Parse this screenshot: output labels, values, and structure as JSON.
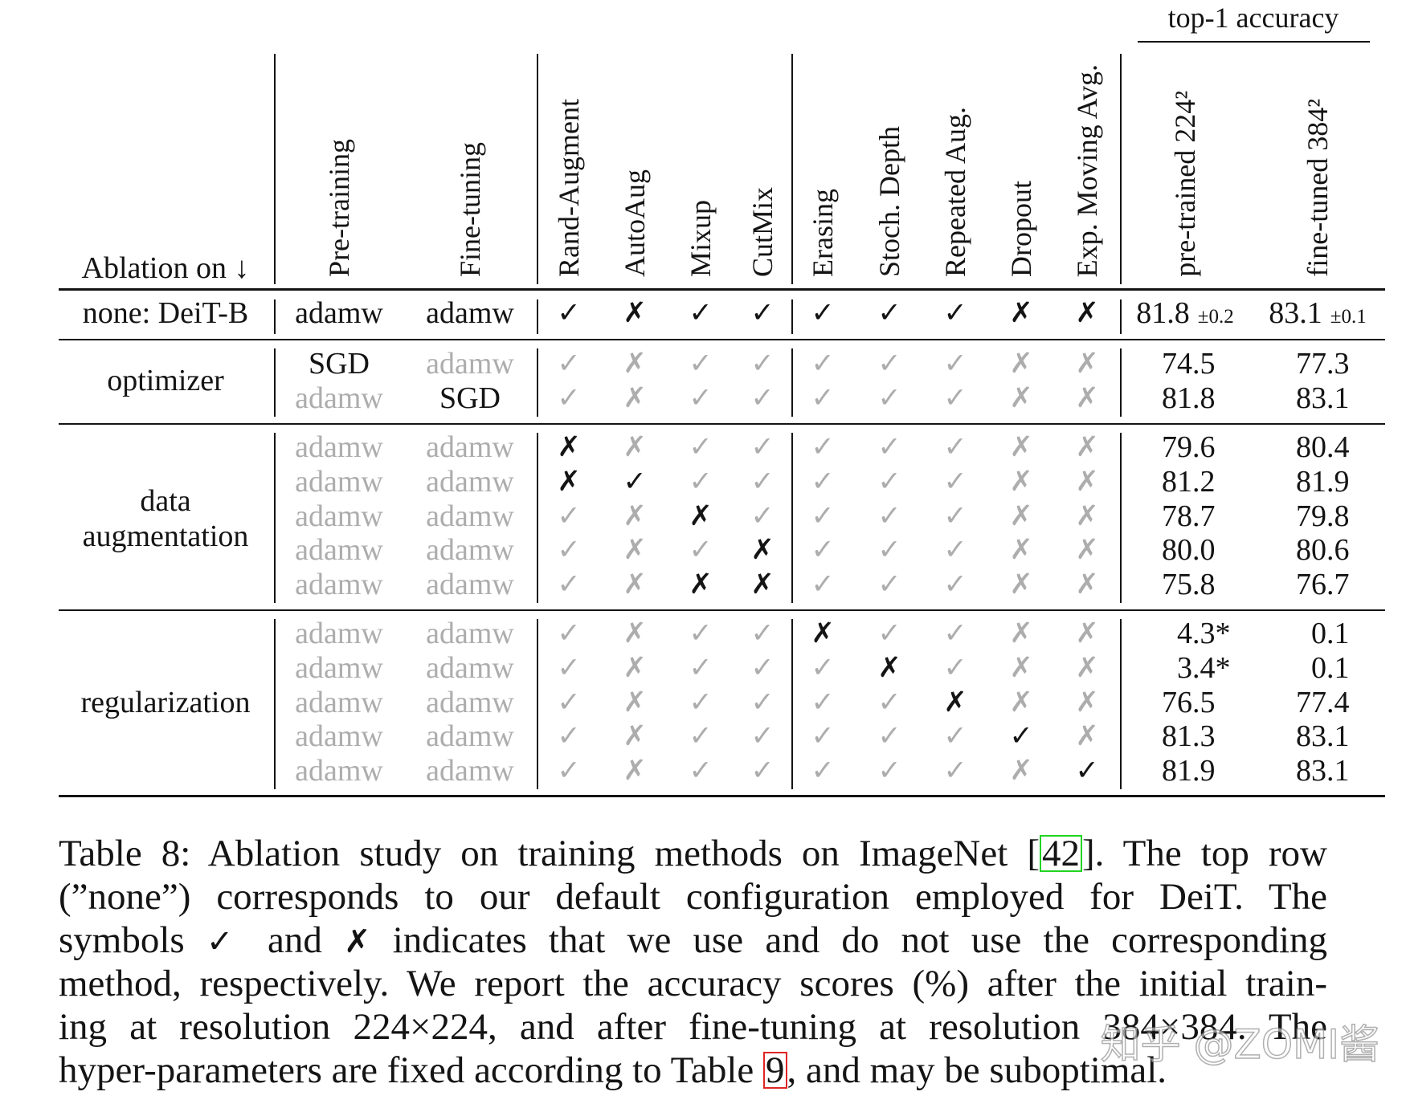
{
  "table": {
    "group_header": "top-1 accuracy",
    "row_header": "Ablation on ↓",
    "columns": {
      "settings": [
        "Pre-training",
        "Fine-tuning"
      ],
      "methods": [
        "Rand-Augment",
        "AutoAug",
        "Mixup",
        "CutMix",
        "Erasing",
        "Stoch. Depth",
        "Repeated Aug.",
        "Dropout",
        "Exp. Moving Avg."
      ],
      "accuracy": [
        "pre-trained 224²",
        "fine-tuned 384²"
      ]
    },
    "symbols": {
      "yes": "✓",
      "no": "✗"
    },
    "baseline": {
      "label": "none: DeiT-B",
      "pre_training": "adamw",
      "fine_tuning": "adamw",
      "methods": [
        true,
        false,
        true,
        true,
        true,
        true,
        true,
        false,
        false
      ],
      "pretrained": "81.8",
      "pretrained_std": "±0.2",
      "finetuned": "83.1",
      "finetuned_std": "±0.1"
    },
    "groups": [
      {
        "label": [
          "optimizer"
        ],
        "rows": [
          {
            "pre_training": "SGD",
            "fine_tuning": "adamw",
            "methods": [
              true,
              false,
              true,
              true,
              true,
              true,
              true,
              false,
              false
            ],
            "pretrained": "74.5",
            "finetuned": "77.3"
          },
          {
            "pre_training": "adamw",
            "fine_tuning": "SGD",
            "methods": [
              true,
              false,
              true,
              true,
              true,
              true,
              true,
              false,
              false
            ],
            "pretrained": "81.8",
            "finetuned": "83.1"
          }
        ]
      },
      {
        "label": [
          "data",
          "augmentation"
        ],
        "rows": [
          {
            "pre_training": "adamw",
            "fine_tuning": "adamw",
            "methods": [
              false,
              false,
              true,
              true,
              true,
              true,
              true,
              false,
              false
            ],
            "pretrained": "79.6",
            "finetuned": "80.4"
          },
          {
            "pre_training": "adamw",
            "fine_tuning": "adamw",
            "methods": [
              false,
              true,
              true,
              true,
              true,
              true,
              true,
              false,
              false
            ],
            "pretrained": "81.2",
            "finetuned": "81.9"
          },
          {
            "pre_training": "adamw",
            "fine_tuning": "adamw",
            "methods": [
              true,
              false,
              false,
              true,
              true,
              true,
              true,
              false,
              false
            ],
            "pretrained": "78.7",
            "finetuned": "79.8"
          },
          {
            "pre_training": "adamw",
            "fine_tuning": "adamw",
            "methods": [
              true,
              false,
              true,
              false,
              true,
              true,
              true,
              false,
              false
            ],
            "pretrained": "80.0",
            "finetuned": "80.6"
          },
          {
            "pre_training": "adamw",
            "fine_tuning": "adamw",
            "methods": [
              true,
              false,
              false,
              false,
              true,
              true,
              true,
              false,
              false
            ],
            "pretrained": "75.8",
            "finetuned": "76.7"
          }
        ]
      },
      {
        "label": [
          "regularization"
        ],
        "rows": [
          {
            "pre_training": "adamw",
            "fine_tuning": "adamw",
            "methods": [
              true,
              false,
              true,
              true,
              false,
              true,
              true,
              false,
              false
            ],
            "pretrained": "4.3*",
            "finetuned": "0.1"
          },
          {
            "pre_training": "adamw",
            "fine_tuning": "adamw",
            "methods": [
              true,
              false,
              true,
              true,
              true,
              false,
              true,
              false,
              false
            ],
            "pretrained": "3.4*",
            "finetuned": "0.1"
          },
          {
            "pre_training": "adamw",
            "fine_tuning": "adamw",
            "methods": [
              true,
              false,
              true,
              true,
              true,
              true,
              false,
              false,
              false
            ],
            "pretrained": "76.5",
            "finetuned": "77.4"
          },
          {
            "pre_training": "adamw",
            "fine_tuning": "adamw",
            "methods": [
              true,
              false,
              true,
              true,
              true,
              true,
              true,
              true,
              false
            ],
            "pretrained": "81.3",
            "finetuned": "83.1"
          },
          {
            "pre_training": "adamw",
            "fine_tuning": "adamw",
            "methods": [
              true,
              false,
              true,
              true,
              true,
              true,
              true,
              false,
              true
            ],
            "pretrained": "81.9",
            "finetuned": "83.1"
          }
        ]
      }
    ]
  },
  "caption": {
    "lines": [
      [
        {
          "text": "Table 8: Ablation study on training methods on ImageNet ["
        },
        {
          "text": "42",
          "box": "#22d422"
        },
        {
          "text": "]. The top row"
        }
      ],
      [
        {
          "text": "(”none”) corresponds to our default configuration employed for DeiT. The"
        }
      ],
      [
        {
          "text": "symbols "
        },
        {
          "text": "✓",
          "symbol": true
        },
        {
          "text": " and "
        },
        {
          "text": "✗",
          "symbol": true
        },
        {
          "text": " indicates that we use and do not use the corresponding"
        }
      ],
      [
        {
          "text": "method, respectively. We report the accuracy scores (%) after the initial train-"
        }
      ],
      [
        {
          "text": "ing at resolution 224×224, and after fine-tuning at resolution 384×384. The"
        }
      ],
      [
        {
          "text": "hyper-parameters are fixed according to Table "
        },
        {
          "text": "9",
          "box": "#e02424"
        },
        {
          "text": ", and may be suboptimal."
        }
      ]
    ]
  },
  "colors": {
    "text": "#141414",
    "muted": "#adadad",
    "citation_box": "#22d422",
    "table_ref_box": "#e02424"
  },
  "watermark": "知乎 @ZOMI酱"
}
